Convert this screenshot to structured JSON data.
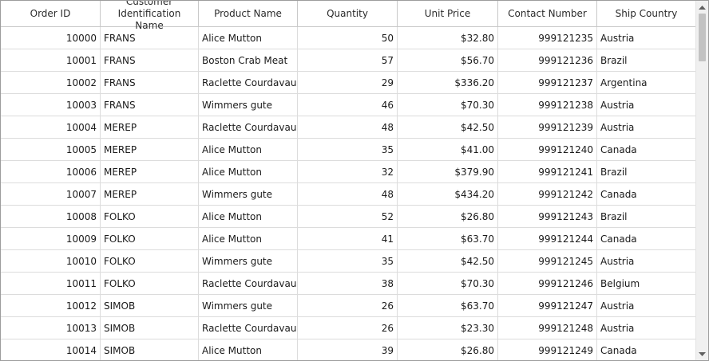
{
  "columns": [
    "Order ID",
    "Customer\nIdentification Name",
    "Product Name",
    "Quantity",
    "Unit Price",
    "Contact Number",
    "Ship Country"
  ],
  "rows": [
    [
      "10000",
      "FRANS",
      "Alice Mutton",
      "50",
      "$32.80",
      "999121235",
      "Austria"
    ],
    [
      "10001",
      "FRANS",
      "Boston Crab Meat",
      "57",
      "$56.70",
      "999121236",
      "Brazil"
    ],
    [
      "10002",
      "FRANS",
      "Raclette Courdavault",
      "29",
      "$336.20",
      "999121237",
      "Argentina"
    ],
    [
      "10003",
      "FRANS",
      "Wimmers gute",
      "46",
      "$70.30",
      "999121238",
      "Austria"
    ],
    [
      "10004",
      "MEREP",
      "Raclette Courdavault",
      "48",
      "$42.50",
      "999121239",
      "Austria"
    ],
    [
      "10005",
      "MEREP",
      "Alice Mutton",
      "35",
      "$41.00",
      "999121240",
      "Canada"
    ],
    [
      "10006",
      "MEREP",
      "Alice Mutton",
      "32",
      "$379.90",
      "999121241",
      "Brazil"
    ],
    [
      "10007",
      "MEREP",
      "Wimmers gute",
      "48",
      "$434.20",
      "999121242",
      "Canada"
    ],
    [
      "10008",
      "FOLKO",
      "Alice Mutton",
      "52",
      "$26.80",
      "999121243",
      "Brazil"
    ],
    [
      "10009",
      "FOLKO",
      "Alice Mutton",
      "41",
      "$63.70",
      "999121244",
      "Canada"
    ],
    [
      "10010",
      "FOLKO",
      "Wimmers gute",
      "35",
      "$42.50",
      "999121245",
      "Austria"
    ],
    [
      "10011",
      "FOLKO",
      "Raclette Courdavault",
      "38",
      "$70.30",
      "999121246",
      "Belgium"
    ],
    [
      "10012",
      "SIMOB",
      "Wimmers gute",
      "26",
      "$63.70",
      "999121247",
      "Austria"
    ],
    [
      "10013",
      "SIMOB",
      "Raclette Courdavault",
      "26",
      "$23.30",
      "999121248",
      "Austria"
    ],
    [
      "10014",
      "SIMOB",
      "Alice Mutton",
      "39",
      "$26.80",
      "999121249",
      "Canada"
    ]
  ],
  "column_align": [
    "right",
    "left",
    "left",
    "right",
    "right",
    "right",
    "left"
  ],
  "scrollbar": {
    "up_icon": "caret-up-icon",
    "down_icon": "caret-down-icon"
  },
  "colors": {
    "border": "#9c9c9c",
    "gridline": "#dcdcdc",
    "scrollbar_thumb": "#c2c2c2"
  }
}
